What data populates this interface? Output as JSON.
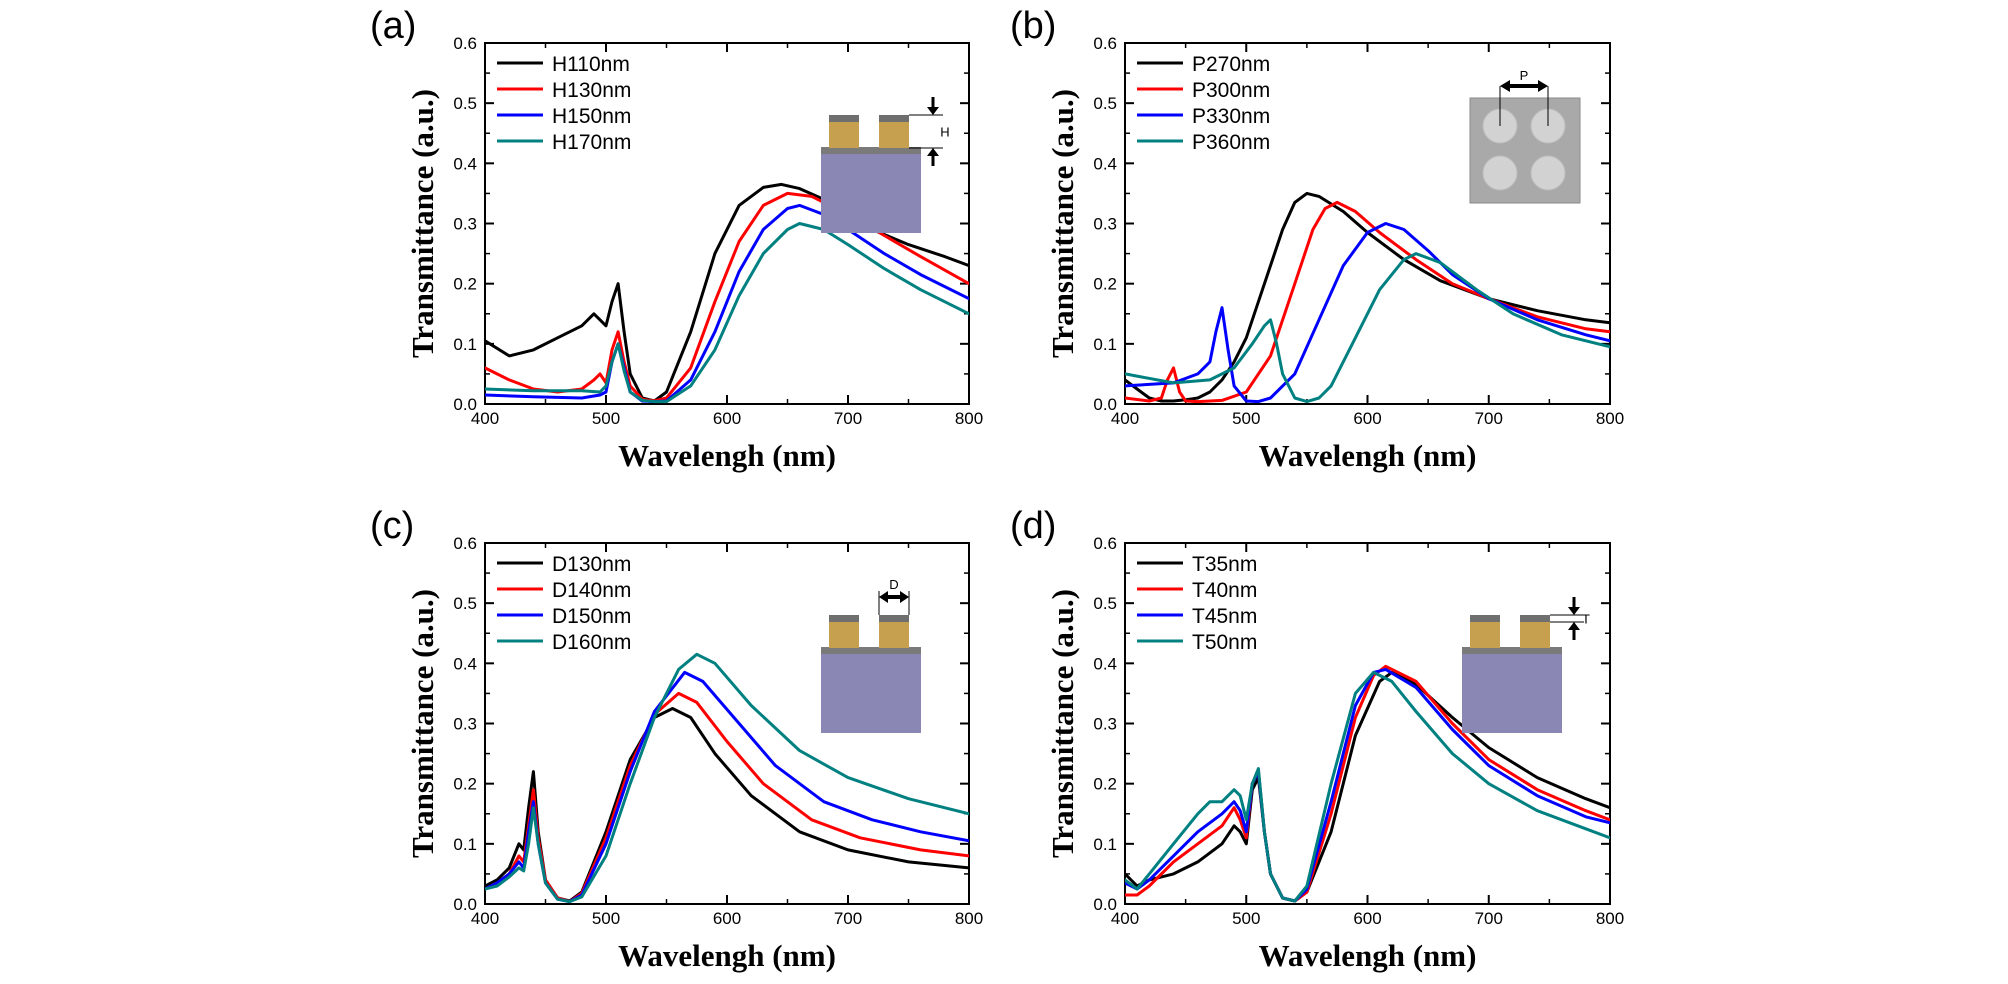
{
  "chart_data": [
    {
      "type": "line",
      "panel_label": "(a)",
      "xlabel": "Wavelengh (nm)",
      "ylabel": "Transmittance (a.u.)",
      "xlim": [
        400,
        800
      ],
      "ylim": [
        0,
        0.6
      ],
      "xticks": [
        "400",
        "500",
        "600",
        "700",
        "800"
      ],
      "yticks": [
        "0.0",
        "0.1",
        "0.2",
        "0.3",
        "0.4",
        "0.5",
        "0.6"
      ],
      "legend_position": "top-left",
      "inset": {
        "kind": "cross-section",
        "dimension_label": "H"
      },
      "series": [
        {
          "name": "H110nm",
          "color": "#000000",
          "x": [
            400,
            420,
            440,
            460,
            480,
            490,
            500,
            505,
            510,
            515,
            520,
            530,
            540,
            550,
            570,
            590,
            610,
            630,
            645,
            660,
            680,
            700,
            720,
            750,
            780,
            800
          ],
          "y": [
            0.105,
            0.08,
            0.09,
            0.11,
            0.13,
            0.15,
            0.13,
            0.17,
            0.2,
            0.12,
            0.05,
            0.01,
            0.005,
            0.02,
            0.12,
            0.25,
            0.33,
            0.36,
            0.365,
            0.358,
            0.34,
            0.315,
            0.29,
            0.265,
            0.245,
            0.23
          ]
        },
        {
          "name": "H130nm",
          "color": "#ff0000",
          "x": [
            400,
            420,
            440,
            460,
            480,
            490,
            495,
            500,
            505,
            510,
            515,
            520,
            530,
            540,
            550,
            570,
            590,
            610,
            630,
            650,
            670,
            700,
            730,
            760,
            800
          ],
          "y": [
            0.06,
            0.04,
            0.025,
            0.02,
            0.025,
            0.04,
            0.05,
            0.035,
            0.09,
            0.12,
            0.07,
            0.03,
            0.008,
            0.005,
            0.01,
            0.06,
            0.17,
            0.27,
            0.33,
            0.35,
            0.345,
            0.315,
            0.28,
            0.245,
            0.2
          ]
        },
        {
          "name": "H150nm",
          "color": "#0000ff",
          "x": [
            400,
            440,
            480,
            495,
            500,
            505,
            510,
            515,
            520,
            530,
            540,
            550,
            570,
            590,
            610,
            630,
            650,
            660,
            680,
            700,
            730,
            760,
            800
          ],
          "y": [
            0.015,
            0.012,
            0.01,
            0.015,
            0.02,
            0.07,
            0.1,
            0.06,
            0.02,
            0.005,
            0.004,
            0.005,
            0.04,
            0.12,
            0.22,
            0.29,
            0.325,
            0.33,
            0.315,
            0.29,
            0.25,
            0.215,
            0.175
          ]
        },
        {
          "name": "H170nm",
          "color": "#008080",
          "x": [
            400,
            440,
            480,
            495,
            500,
            505,
            510,
            515,
            520,
            530,
            540,
            550,
            570,
            590,
            610,
            630,
            650,
            660,
            680,
            700,
            730,
            760,
            800
          ],
          "y": [
            0.025,
            0.022,
            0.022,
            0.02,
            0.03,
            0.07,
            0.1,
            0.055,
            0.02,
            0.006,
            0.004,
            0.004,
            0.03,
            0.09,
            0.18,
            0.25,
            0.29,
            0.3,
            0.29,
            0.265,
            0.225,
            0.19,
            0.15
          ]
        }
      ]
    },
    {
      "type": "line",
      "panel_label": "(b)",
      "xlabel": "Wavelengh (nm)",
      "ylabel": "Transmittance (a.u.)",
      "xlim": [
        400,
        800
      ],
      "ylim": [
        0,
        0.6
      ],
      "xticks": [
        "400",
        "500",
        "600",
        "700",
        "800"
      ],
      "yticks": [
        "0.0",
        "0.1",
        "0.2",
        "0.3",
        "0.4",
        "0.5",
        "0.6"
      ],
      "legend_position": "top-left",
      "inset": {
        "kind": "top-view",
        "dimension_label": "P"
      },
      "series": [
        {
          "name": "P270nm",
          "color": "#000000",
          "x": [
            400,
            410,
            420,
            430,
            440,
            450,
            460,
            470,
            480,
            490,
            500,
            510,
            520,
            530,
            540,
            550,
            560,
            580,
            600,
            630,
            660,
            700,
            740,
            780,
            800
          ],
          "y": [
            0.04,
            0.025,
            0.01,
            0.005,
            0.005,
            0.007,
            0.01,
            0.02,
            0.04,
            0.07,
            0.11,
            0.17,
            0.23,
            0.29,
            0.335,
            0.35,
            0.345,
            0.32,
            0.285,
            0.24,
            0.205,
            0.175,
            0.155,
            0.14,
            0.135
          ]
        },
        {
          "name": "P300nm",
          "color": "#ff0000",
          "x": [
            400,
            420,
            430,
            435,
            440,
            445,
            450,
            460,
            480,
            500,
            520,
            540,
            555,
            565,
            575,
            590,
            610,
            640,
            670,
            700,
            740,
            780,
            800
          ],
          "y": [
            0.01,
            0.005,
            0.01,
            0.04,
            0.06,
            0.02,
            0.005,
            0.004,
            0.006,
            0.02,
            0.08,
            0.2,
            0.29,
            0.325,
            0.335,
            0.32,
            0.285,
            0.24,
            0.2,
            0.175,
            0.145,
            0.125,
            0.12
          ]
        },
        {
          "name": "P330nm",
          "color": "#0000ff",
          "x": [
            400,
            440,
            460,
            470,
            475,
            480,
            485,
            490,
            500,
            510,
            520,
            540,
            560,
            580,
            600,
            615,
            630,
            650,
            670,
            700,
            740,
            780,
            800
          ],
          "y": [
            0.03,
            0.035,
            0.05,
            0.07,
            0.12,
            0.16,
            0.09,
            0.03,
            0.005,
            0.004,
            0.01,
            0.05,
            0.14,
            0.23,
            0.285,
            0.3,
            0.29,
            0.255,
            0.215,
            0.175,
            0.14,
            0.115,
            0.105
          ]
        },
        {
          "name": "P360nm",
          "color": "#008080",
          "x": [
            400,
            440,
            470,
            490,
            505,
            515,
            520,
            525,
            530,
            540,
            550,
            560,
            570,
            590,
            610,
            630,
            640,
            660,
            690,
            720,
            760,
            800
          ],
          "y": [
            0.05,
            0.035,
            0.04,
            0.06,
            0.1,
            0.13,
            0.14,
            0.1,
            0.05,
            0.01,
            0.004,
            0.01,
            0.03,
            0.11,
            0.19,
            0.24,
            0.25,
            0.235,
            0.19,
            0.15,
            0.115,
            0.095
          ]
        }
      ]
    },
    {
      "type": "line",
      "panel_label": "(c)",
      "xlabel": "Wavelengh (nm)",
      "ylabel": "Transmittance (a.u.)",
      "xlim": [
        400,
        800
      ],
      "ylim": [
        0,
        0.6
      ],
      "xticks": [
        "400",
        "500",
        "600",
        "700",
        "800"
      ],
      "yticks": [
        "0.0",
        "0.1",
        "0.2",
        "0.3",
        "0.4",
        "0.5",
        "0.6"
      ],
      "legend_position": "top-left",
      "inset": {
        "kind": "cross-section",
        "dimension_label": "D"
      },
      "series": [
        {
          "name": "D130nm",
          "color": "#000000",
          "x": [
            400,
            410,
            420,
            428,
            432,
            436,
            440,
            444,
            450,
            460,
            470,
            480,
            500,
            520,
            540,
            555,
            570,
            590,
            620,
            660,
            700,
            750,
            800
          ],
          "y": [
            0.03,
            0.04,
            0.06,
            0.1,
            0.09,
            0.16,
            0.22,
            0.12,
            0.04,
            0.01,
            0.005,
            0.02,
            0.12,
            0.24,
            0.31,
            0.325,
            0.31,
            0.25,
            0.18,
            0.12,
            0.09,
            0.07,
            0.06
          ]
        },
        {
          "name": "D140nm",
          "color": "#ff0000",
          "x": [
            400,
            410,
            420,
            428,
            432,
            436,
            440,
            444,
            450,
            460,
            470,
            480,
            500,
            520,
            540,
            560,
            575,
            600,
            630,
            670,
            710,
            760,
            800
          ],
          "y": [
            0.025,
            0.035,
            0.05,
            0.08,
            0.07,
            0.13,
            0.19,
            0.11,
            0.04,
            0.01,
            0.004,
            0.018,
            0.11,
            0.23,
            0.315,
            0.35,
            0.335,
            0.27,
            0.2,
            0.14,
            0.11,
            0.09,
            0.08
          ]
        },
        {
          "name": "D150nm",
          "color": "#0000ff",
          "x": [
            400,
            410,
            420,
            428,
            432,
            436,
            440,
            444,
            450,
            460,
            470,
            480,
            500,
            520,
            540,
            565,
            580,
            610,
            640,
            680,
            720,
            760,
            800
          ],
          "y": [
            0.025,
            0.035,
            0.05,
            0.07,
            0.06,
            0.12,
            0.17,
            0.1,
            0.035,
            0.008,
            0.004,
            0.015,
            0.1,
            0.22,
            0.32,
            0.385,
            0.37,
            0.3,
            0.23,
            0.17,
            0.14,
            0.12,
            0.105
          ]
        },
        {
          "name": "D160nm",
          "color": "#008080",
          "x": [
            400,
            410,
            420,
            428,
            432,
            436,
            440,
            444,
            450,
            460,
            470,
            480,
            500,
            520,
            540,
            560,
            575,
            590,
            620,
            660,
            700,
            750,
            800
          ],
          "y": [
            0.025,
            0.03,
            0.045,
            0.06,
            0.055,
            0.1,
            0.16,
            0.1,
            0.035,
            0.008,
            0.004,
            0.012,
            0.08,
            0.2,
            0.31,
            0.39,
            0.415,
            0.4,
            0.33,
            0.255,
            0.21,
            0.175,
            0.15
          ]
        }
      ]
    },
    {
      "type": "line",
      "panel_label": "(d)",
      "xlabel": "Wavelengh (nm)",
      "ylabel": "Transmittance (a.u.)",
      "xlim": [
        400,
        800
      ],
      "ylim": [
        0,
        0.6
      ],
      "xticks": [
        "400",
        "500",
        "600",
        "700",
        "800"
      ],
      "yticks": [
        "0.0",
        "0.1",
        "0.2",
        "0.3",
        "0.4",
        "0.5",
        "0.6"
      ],
      "legend_position": "top-left",
      "inset": {
        "kind": "cross-section",
        "dimension_label": "T"
      },
      "series": [
        {
          "name": "T35nm",
          "color": "#000000",
          "x": [
            400,
            410,
            420,
            440,
            460,
            480,
            490,
            495,
            500,
            505,
            510,
            515,
            520,
            530,
            540,
            550,
            570,
            590,
            610,
            620,
            640,
            670,
            700,
            740,
            780,
            800
          ],
          "y": [
            0.05,
            0.03,
            0.04,
            0.05,
            0.07,
            0.1,
            0.13,
            0.12,
            0.1,
            0.19,
            0.21,
            0.12,
            0.05,
            0.01,
            0.005,
            0.02,
            0.12,
            0.28,
            0.37,
            0.385,
            0.365,
            0.31,
            0.26,
            0.21,
            0.175,
            0.16
          ]
        },
        {
          "name": "T40nm",
          "color": "#ff0000",
          "x": [
            400,
            410,
            420,
            440,
            460,
            480,
            490,
            495,
            500,
            505,
            510,
            515,
            520,
            530,
            540,
            550,
            570,
            590,
            605,
            615,
            640,
            670,
            700,
            740,
            780,
            800
          ],
          "y": [
            0.015,
            0.015,
            0.03,
            0.07,
            0.1,
            0.13,
            0.16,
            0.14,
            0.11,
            0.2,
            0.22,
            0.12,
            0.05,
            0.01,
            0.005,
            0.02,
            0.15,
            0.31,
            0.38,
            0.395,
            0.37,
            0.3,
            0.24,
            0.19,
            0.155,
            0.14
          ]
        },
        {
          "name": "T45nm",
          "color": "#0000ff",
          "x": [
            400,
            410,
            420,
            440,
            460,
            480,
            490,
            495,
            500,
            505,
            510,
            515,
            520,
            530,
            540,
            550,
            570,
            590,
            605,
            615,
            640,
            670,
            700,
            740,
            780,
            800
          ],
          "y": [
            0.035,
            0.025,
            0.04,
            0.08,
            0.12,
            0.15,
            0.17,
            0.155,
            0.12,
            0.2,
            0.22,
            0.12,
            0.05,
            0.01,
            0.005,
            0.025,
            0.17,
            0.33,
            0.385,
            0.39,
            0.36,
            0.29,
            0.23,
            0.18,
            0.145,
            0.135
          ]
        },
        {
          "name": "T50nm",
          "color": "#008080",
          "x": [
            400,
            410,
            420,
            440,
            460,
            470,
            480,
            490,
            495,
            500,
            505,
            510,
            515,
            520,
            530,
            540,
            550,
            570,
            590,
            605,
            620,
            640,
            670,
            700,
            740,
            780,
            800
          ],
          "y": [
            0.04,
            0.025,
            0.05,
            0.1,
            0.15,
            0.17,
            0.17,
            0.19,
            0.18,
            0.14,
            0.2,
            0.225,
            0.12,
            0.05,
            0.01,
            0.005,
            0.03,
            0.2,
            0.35,
            0.385,
            0.37,
            0.32,
            0.25,
            0.2,
            0.155,
            0.125,
            0.11
          ]
        }
      ]
    }
  ]
}
